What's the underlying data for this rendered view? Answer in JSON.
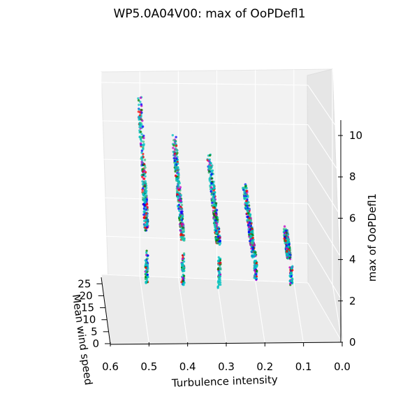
{
  "chart_data": {
    "type": "scatter",
    "projection": "3d",
    "title": "WP5.0A04V00: max of OoPDefl1",
    "xlabel": "Turbulence intensity",
    "ylabel": "Mean wind speed",
    "zlabel": "max of OoPDefl1",
    "xlim": [
      0.6,
      0.0
    ],
    "ylim": [
      0,
      28
    ],
    "zlim": [
      0,
      10.5
    ],
    "x_ticks": [
      "0.6",
      "0.5",
      "0.4",
      "0.3",
      "0.2",
      "0.1",
      "0.0"
    ],
    "y_ticks": [
      "0",
      "5",
      "10",
      "15",
      "20",
      "25"
    ],
    "z_ticks": [
      "0",
      "2",
      "4",
      "6",
      "8",
      "10"
    ],
    "grid": true,
    "marker_colors": [
      "#00c0c0",
      "#c000c0",
      "#008000",
      "#ff0000",
      "#0000ff",
      "#40c080"
    ],
    "clusters": [
      {
        "x": 0.5,
        "y_range": [
          4,
          26
        ],
        "z_range": [
          3.1,
          9.5
        ]
      },
      {
        "x": 0.4,
        "y_range": [
          4,
          26
        ],
        "z_range": [
          3.0,
          8.9
        ]
      },
      {
        "x": 0.3,
        "y_range": [
          4,
          26
        ],
        "z_range": [
          2.7,
          8.2
        ]
      },
      {
        "x": 0.2,
        "y_range": [
          4,
          26
        ],
        "z_range": [
          2.4,
          7.1
        ]
      },
      {
        "x": 0.1,
        "y_range": [
          4,
          26
        ],
        "z_range": [
          2.2,
          6.0
        ]
      }
    ]
  }
}
